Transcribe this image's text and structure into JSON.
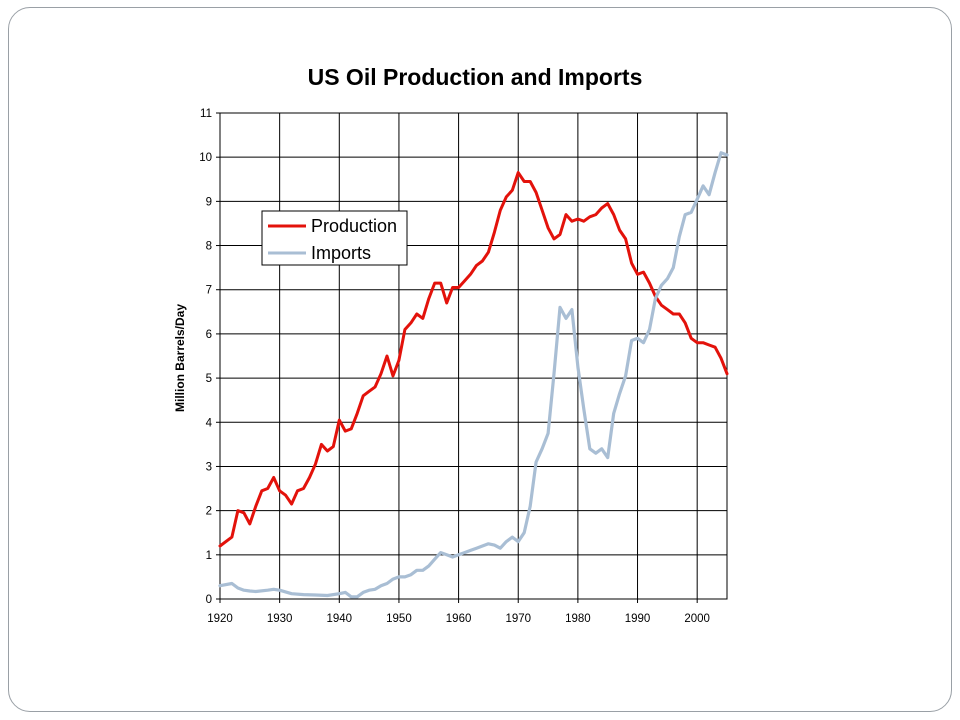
{
  "chart_data": {
    "type": "line",
    "title": "US Oil Production and Imports",
    "xlabel": "",
    "ylabel": "Million Barrels/Day",
    "xlim": [
      1920,
      2005
    ],
    "ylim": [
      0,
      11
    ],
    "x_ticks": [
      "1920",
      "1930",
      "1940",
      "1950",
      "1960",
      "1970",
      "1980",
      "1990",
      "2000"
    ],
    "y_ticks": [
      "0",
      "1",
      "2",
      "3",
      "4",
      "5",
      "6",
      "7",
      "8",
      "9",
      "10",
      "11"
    ],
    "grid": true,
    "legend": "upper-left",
    "series": [
      {
        "name": "Production",
        "color": "#e3120b",
        "points": [
          [
            1920,
            1.2
          ],
          [
            1922,
            1.4
          ],
          [
            1923,
            2.0
          ],
          [
            1924,
            1.95
          ],
          [
            1925,
            1.7
          ],
          [
            1926,
            2.1
          ],
          [
            1927,
            2.45
          ],
          [
            1928,
            2.5
          ],
          [
            1929,
            2.75
          ],
          [
            1930,
            2.45
          ],
          [
            1931,
            2.35
          ],
          [
            1932,
            2.15
          ],
          [
            1933,
            2.45
          ],
          [
            1934,
            2.5
          ],
          [
            1935,
            2.75
          ],
          [
            1936,
            3.05
          ],
          [
            1937,
            3.5
          ],
          [
            1938,
            3.35
          ],
          [
            1939,
            3.45
          ],
          [
            1940,
            4.05
          ],
          [
            1941,
            3.8
          ],
          [
            1942,
            3.85
          ],
          [
            1943,
            4.2
          ],
          [
            1944,
            4.6
          ],
          [
            1945,
            4.7
          ],
          [
            1946,
            4.8
          ],
          [
            1947,
            5.1
          ],
          [
            1948,
            5.5
          ],
          [
            1949,
            5.05
          ],
          [
            1950,
            5.4
          ],
          [
            1951,
            6.1
          ],
          [
            1952,
            6.25
          ],
          [
            1953,
            6.45
          ],
          [
            1954,
            6.35
          ],
          [
            1955,
            6.8
          ],
          [
            1956,
            7.15
          ],
          [
            1957,
            7.15
          ],
          [
            1958,
            6.7
          ],
          [
            1959,
            7.05
          ],
          [
            1960,
            7.05
          ],
          [
            1961,
            7.2
          ],
          [
            1962,
            7.35
          ],
          [
            1963,
            7.55
          ],
          [
            1964,
            7.65
          ],
          [
            1965,
            7.85
          ],
          [
            1966,
            8.3
          ],
          [
            1967,
            8.8
          ],
          [
            1968,
            9.1
          ],
          [
            1969,
            9.25
          ],
          [
            1970,
            9.65
          ],
          [
            1971,
            9.45
          ],
          [
            1972,
            9.45
          ],
          [
            1973,
            9.2
          ],
          [
            1974,
            8.8
          ],
          [
            1975,
            8.4
          ],
          [
            1976,
            8.15
          ],
          [
            1977,
            8.25
          ],
          [
            1978,
            8.7
          ],
          [
            1979,
            8.55
          ],
          [
            1980,
            8.6
          ],
          [
            1981,
            8.55
          ],
          [
            1982,
            8.65
          ],
          [
            1983,
            8.7
          ],
          [
            1984,
            8.85
          ],
          [
            1985,
            8.95
          ],
          [
            1986,
            8.7
          ],
          [
            1987,
            8.35
          ],
          [
            1988,
            8.15
          ],
          [
            1989,
            7.6
          ],
          [
            1990,
            7.35
          ],
          [
            1991,
            7.4
          ],
          [
            1992,
            7.15
          ],
          [
            1993,
            6.85
          ],
          [
            1994,
            6.65
          ],
          [
            1995,
            6.55
          ],
          [
            1996,
            6.45
          ],
          [
            1997,
            6.45
          ],
          [
            1998,
            6.25
          ],
          [
            1999,
            5.9
          ],
          [
            2000,
            5.8
          ],
          [
            2001,
            5.8
          ],
          [
            2002,
            5.75
          ],
          [
            2003,
            5.7
          ],
          [
            2004,
            5.45
          ],
          [
            2005,
            5.1
          ]
        ]
      },
      {
        "name": "Imports",
        "color": "#a9bed4",
        "points": [
          [
            1920,
            0.3
          ],
          [
            1922,
            0.35
          ],
          [
            1923,
            0.25
          ],
          [
            1924,
            0.2
          ],
          [
            1925,
            0.18
          ],
          [
            1926,
            0.17
          ],
          [
            1928,
            0.2
          ],
          [
            1929,
            0.22
          ],
          [
            1930,
            0.2
          ],
          [
            1932,
            0.12
          ],
          [
            1934,
            0.1
          ],
          [
            1936,
            0.09
          ],
          [
            1938,
            0.08
          ],
          [
            1940,
            0.12
          ],
          [
            1941,
            0.15
          ],
          [
            1942,
            0.05
          ],
          [
            1943,
            0.05
          ],
          [
            1944,
            0.15
          ],
          [
            1945,
            0.2
          ],
          [
            1946,
            0.22
          ],
          [
            1947,
            0.3
          ],
          [
            1948,
            0.35
          ],
          [
            1949,
            0.45
          ],
          [
            1950,
            0.5
          ],
          [
            1951,
            0.5
          ],
          [
            1952,
            0.55
          ],
          [
            1953,
            0.65
          ],
          [
            1954,
            0.65
          ],
          [
            1955,
            0.75
          ],
          [
            1956,
            0.9
          ],
          [
            1957,
            1.05
          ],
          [
            1958,
            1.0
          ],
          [
            1959,
            0.95
          ],
          [
            1960,
            1.0
          ],
          [
            1961,
            1.05
          ],
          [
            1962,
            1.1
          ],
          [
            1963,
            1.15
          ],
          [
            1964,
            1.2
          ],
          [
            1965,
            1.25
          ],
          [
            1966,
            1.22
          ],
          [
            1967,
            1.15
          ],
          [
            1968,
            1.3
          ],
          [
            1969,
            1.4
          ],
          [
            1970,
            1.3
          ],
          [
            1971,
            1.5
          ],
          [
            1972,
            2.1
          ],
          [
            1973,
            3.1
          ],
          [
            1974,
            3.4
          ],
          [
            1975,
            3.75
          ],
          [
            1976,
            5.1
          ],
          [
            1977,
            6.6
          ],
          [
            1978,
            6.35
          ],
          [
            1979,
            6.55
          ],
          [
            1980,
            5.25
          ],
          [
            1981,
            4.3
          ],
          [
            1982,
            3.4
          ],
          [
            1983,
            3.3
          ],
          [
            1984,
            3.4
          ],
          [
            1985,
            3.2
          ],
          [
            1986,
            4.2
          ],
          [
            1987,
            4.65
          ],
          [
            1988,
            5.05
          ],
          [
            1989,
            5.85
          ],
          [
            1990,
            5.9
          ],
          [
            1991,
            5.8
          ],
          [
            1992,
            6.1
          ],
          [
            1993,
            6.8
          ],
          [
            1994,
            7.1
          ],
          [
            1995,
            7.25
          ],
          [
            1996,
            7.5
          ],
          [
            1997,
            8.2
          ],
          [
            1998,
            8.7
          ],
          [
            1999,
            8.75
          ],
          [
            2000,
            9.05
          ],
          [
            2001,
            9.35
          ],
          [
            2002,
            9.15
          ],
          [
            2003,
            9.65
          ],
          [
            2004,
            10.1
          ],
          [
            2005,
            10.05
          ]
        ]
      }
    ]
  }
}
